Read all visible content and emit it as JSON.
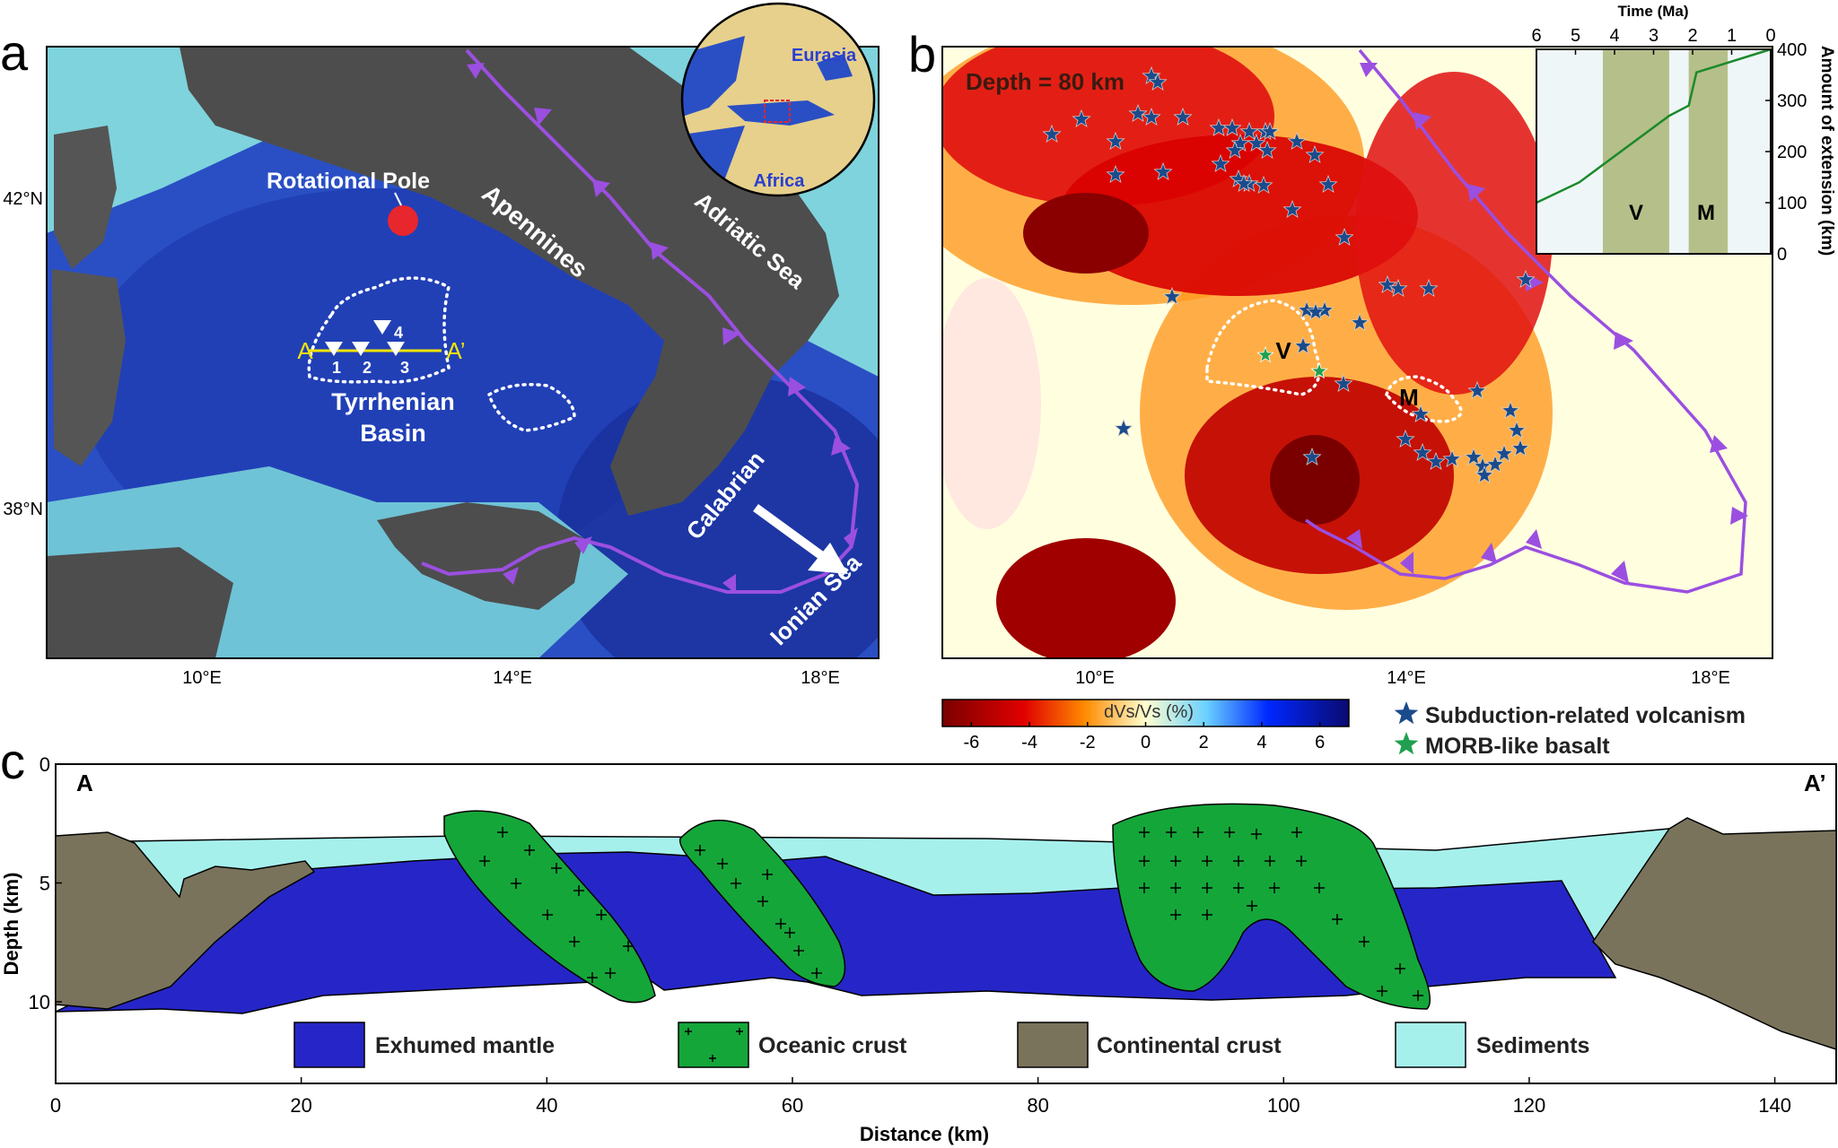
{
  "panels": {
    "a": "a",
    "b": "b",
    "c": "c"
  },
  "colors": {
    "sea_deep": "#1e3fb8",
    "sea_shallow": "#7fd3dc",
    "land": "#4a4a4a",
    "trench": "#9b4fe0",
    "mantle": "#2626c8",
    "ocean_crust": "#15a63a",
    "continental_crust": "#7a735c",
    "sediments": "#a6f0ec",
    "volcanism_star": "#1a4b8c",
    "morb_star": "#20a050"
  },
  "panel_a": {
    "lat_ticks": [
      "42°N",
      "38°N"
    ],
    "lon_ticks": [
      "10°E",
      "14°E",
      "18°E"
    ],
    "labels": {
      "rotational_pole": "Rotational  Pole",
      "apennines": "Apennines",
      "adriatic": "Adriatic Sea",
      "tyrrhenian": "Tyrrhenian",
      "basin": "Basin",
      "calabrian": "Calabrian",
      "ionian": "Ionian Sea",
      "section_start": "A",
      "section_end": "A’",
      "sites": [
        "1",
        "2",
        "3",
        "4"
      ]
    },
    "globe": {
      "eurasia": "Eurasia",
      "africa": "Africa"
    }
  },
  "panel_b": {
    "title": "Depth = 80 km",
    "lon_ticks": [
      "10°E",
      "14°E",
      "18°E"
    ],
    "regions": {
      "v": "V",
      "m": "M"
    },
    "colorbar": {
      "label": "dVs/Vs (%)",
      "ticks": [
        "-6",
        "-4",
        "-2",
        "0",
        "2",
        "4",
        "6"
      ]
    },
    "legend": {
      "volcanism": "Subduction-related volcanism",
      "morb": "MORB-like basalt"
    },
    "inset": {
      "xlabel": "Time (Ma)",
      "ylabel": "Amount of extension (km)",
      "x_ticks": [
        "6",
        "5",
        "4",
        "3",
        "2",
        "1",
        "0"
      ],
      "y_ticks": [
        "0",
        "100",
        "200",
        "300",
        "400"
      ],
      "bands": [
        "V",
        "M"
      ]
    }
  },
  "panel_c": {
    "section_start": "A",
    "section_end": "A’",
    "ylabel": "Depth (km)",
    "xlabel": "Distance (km)",
    "y_ticks": [
      "0",
      "5",
      "10"
    ],
    "x_ticks": [
      "0",
      "20",
      "40",
      "60",
      "80",
      "100",
      "120",
      "140"
    ],
    "legend": {
      "mantle": "Exhumed mantle",
      "ocean": "Oceanic crust",
      "continental": "Continental crust",
      "sediments": "Sediments"
    }
  },
  "chart_data": {
    "type": "line",
    "xlabel": "Time (Ma)",
    "ylabel": "Amount of extension (km)",
    "xlim": [
      6,
      0
    ],
    "ylim": [
      0,
      400
    ],
    "x": [
      6,
      4.9,
      2.6,
      2.1,
      1.9,
      0
    ],
    "values": [
      100,
      140,
      270,
      290,
      355,
      400
    ],
    "bands": [
      {
        "label": "V",
        "from": 4.3,
        "to": 2.6
      },
      {
        "label": "M",
        "from": 2.1,
        "to": 1.1
      }
    ]
  }
}
